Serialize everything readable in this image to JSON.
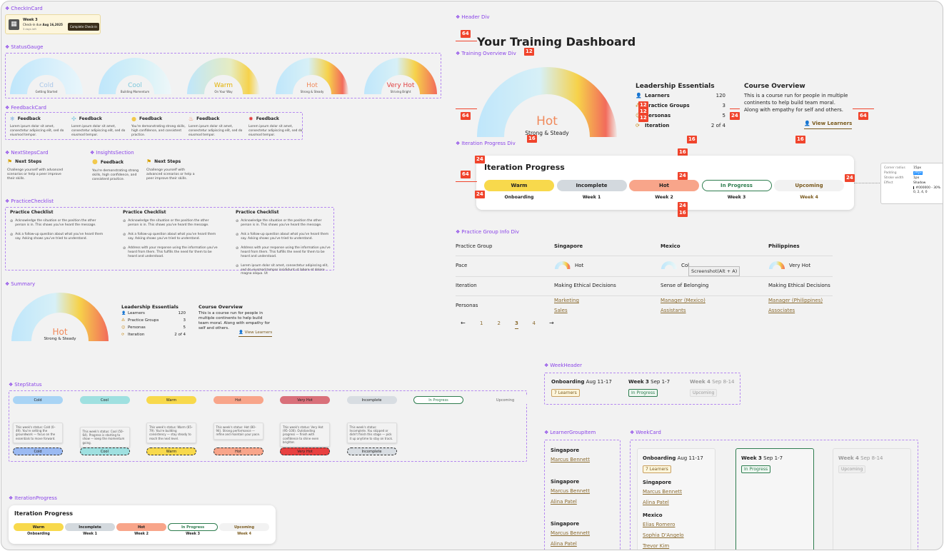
{
  "sections": {
    "checkin": "CheckInCard",
    "gauge": "StatusGauge",
    "feedback": "FeedbackCard",
    "nextsteps": "NextStepsCard",
    "insights": "InsightsSection",
    "checklist": "PracticeChecklist",
    "summary": "Summary",
    "stepstatus": "StepStatus",
    "iterprog": "IterationProgress",
    "header": "Header Div",
    "overview": "Training Overview Div",
    "iterdiv": "Iteration Progress Div",
    "pginfo": "Practice Group Info Div",
    "weekheader": "WeekHeader",
    "learnergroup": "LearnerGroupItem",
    "weekcard": "WeekCard"
  },
  "checkin": {
    "title": "Week 3",
    "due_prefix": "Check-in due",
    "due_date": "Aug 16,2025",
    "left": "3 days left",
    "button": "Complete Check-in"
  },
  "gauges": [
    {
      "label": "Cold",
      "sub": "Getting Started",
      "color": "#a9c6e8"
    },
    {
      "label": "Cool",
      "sub": "Building Momentum",
      "color": "#7fc8dc"
    },
    {
      "label": "Warm",
      "sub": "On Your Way",
      "color": "#e3b100"
    },
    {
      "label": "Hot",
      "sub": "Strong & Steady",
      "color": "#f08a5c"
    },
    {
      "label": "Very Hot",
      "sub": "Striving Bright",
      "color": "#e04040"
    }
  ],
  "feedback": {
    "title": "Feedback",
    "items": [
      {
        "icon": "snowflake-icon",
        "glyph": "❄",
        "color": "#7fb0e0",
        "text": "Lorem ipsum dolor sit amet, consectetur adipiscing elit, sed do eiusmod tempor."
      },
      {
        "icon": "cool-dots-icon",
        "glyph": "✣",
        "color": "#7fc8dc",
        "text": "Lorem ipsum dolor sit amet, consectetur adipiscing elit, sed do eiusmod tempor."
      },
      {
        "icon": "sun-icon",
        "glyph": "●",
        "color": "#f2c94c",
        "text": "You're demonstrating strong skills, high confidence, and consistent practice."
      },
      {
        "icon": "flame-icon",
        "glyph": "♨",
        "color": "#f07040",
        "text": "Lorem ipsum dolor sit amet, consectetur adipiscing elit, sed do eiusmod tempor."
      },
      {
        "icon": "burst-icon",
        "glyph": "✸",
        "color": "#e04040",
        "text": "Lorem ipsum dolor sit amet, consectetur adipiscing elit, sed do eiusmod tempor."
      }
    ]
  },
  "nextsteps": {
    "title": "Next Steps",
    "text": "Challenge yourself with advanced scenarios or help a peer improve their skills."
  },
  "insights": {
    "feedback_title": "Feedback",
    "feedback_text": "You're demonstrating strong skills, high confidence, and consistent practice.",
    "next_title": "Next Steps",
    "next_text": "Challenge yourself with advanced scenarios or help a peer improve their skills."
  },
  "checklist": {
    "title": "Practice Checklist",
    "col1": [
      "Acknowledge the situation or the position the other person is in. This shows you've heard the message.",
      "Ask a follow-up question about what you've heard them say. Asking shows you've tried to understand."
    ],
    "col2": [
      "Acknowledge the situation or the position the other person is in. This shows you've heard the message.",
      "Ask a follow-up question about what you've heard them say. Asking shows you've tried to understand.",
      "Address with your response using the information you've heard from them. This fulfills the need for them to be heard and understood."
    ],
    "col3": [
      "Acknowledge the situation or the position the other person is in. This shows you've heard the message.",
      "Ask a follow-up question about what you've heard them say. Asking shows you've tried to understand.",
      "Address with your response using the information you've heard from them. This fulfills the need for them to be heard and understood.",
      "Lorem ipsum dolor sit amet, consectetur adipiscing elit, sed do eiusmod tempor incididunt ut labore et dolore magna aliqua. Ut"
    ]
  },
  "summary": {
    "gauge_label": "Hot",
    "gauge_sub": "Strong & Steady",
    "le_title": "Leadership Essentials",
    "stats": [
      {
        "icon": "learners-icon",
        "glyph": "👤",
        "label": "Learners",
        "value": "120"
      },
      {
        "icon": "practice-groups-icon",
        "glyph": "⁂",
        "label": "Practice Groups",
        "value": "3"
      },
      {
        "icon": "personas-icon",
        "glyph": "☺",
        "label": "Personas",
        "value": "5"
      },
      {
        "icon": "iteration-icon",
        "glyph": "⟳",
        "label": "Iteration",
        "value": "2 of 4"
      }
    ],
    "co_title": "Course Overview",
    "co_text": "This is a course run for people in multiple continents to help build team moral. Along with empathy for self and others.",
    "view": "View Learners"
  },
  "stepstatus": {
    "pills": [
      {
        "label": "Cold",
        "bg": "#a9d4f5",
        "border": "",
        "color": "#222"
      },
      {
        "label": "Cool",
        "bg": "#9fe0e0",
        "border": "",
        "color": "#222"
      },
      {
        "label": "Warm",
        "bg": "#f8d94c",
        "border": "",
        "color": "#222"
      },
      {
        "label": "Hot",
        "bg": "#f8a58a",
        "border": "",
        "color": "#222"
      },
      {
        "label": "Very Hot",
        "bg": "#d9707a",
        "border": "",
        "color": "#222"
      },
      {
        "label": "Incomplete",
        "bg": "#d8dde2",
        "border": "",
        "color": "#222"
      },
      {
        "label": "In Progress",
        "bg": "#ffffff",
        "border": "#2e7d4f",
        "color": "#2e7d4f"
      },
      {
        "label": "Upcoming",
        "bg": "#f2f2f2",
        "border": "",
        "color": "#666"
      }
    ],
    "tips": [
      {
        "text": "This week's status: Cold (0–49). You're setting the groundwork — focus on the essentials to move forward.",
        "label": "Cold",
        "bg": "#9bbaf2"
      },
      {
        "text": "This week's status: Cool (50–64). Progress is starting to show — keep the momentum going.",
        "label": "Cool",
        "bg": "#9fe0e0"
      },
      {
        "text": "This week's status: Warm (65–79). You're building consistency — stay steady to reach the next level.",
        "label": "Warm",
        "bg": "#f8d94c"
      },
      {
        "text": "This week's status: Hot (80–94). Strong performance — refine and maintain your pace.",
        "label": "Hot",
        "bg": "#f8a58a"
      },
      {
        "text": "This week's status: Very Hot (95–100). Outstanding progress — finish with confidence to shine even brighter.",
        "label": "Very Hot",
        "bg": "#e84040"
      },
      {
        "text": "This week's status: Incomplete. You skipped or didn't finish this stage — pick it up anytime to stay on track.",
        "label": "Incomplete",
        "bg": "#d8dde2"
      }
    ]
  },
  "iteration": {
    "title": "Iteration Progress",
    "steps": [
      {
        "label": "Warm",
        "week": "Onboarding",
        "bg": "#f8d94c",
        "border": "",
        "color": "#222",
        "wcolor": "#222"
      },
      {
        "label": "Incomplete",
        "week": "Week 1",
        "bg": "#d3d9de",
        "border": "",
        "color": "#222",
        "wcolor": "#222"
      },
      {
        "label": "Hot",
        "week": "Week 2",
        "bg": "#f8a58a",
        "border": "",
        "color": "#222",
        "wcolor": "#222"
      },
      {
        "label": "In Progress",
        "week": "Week 3",
        "bg": "#ffffff",
        "border": "#2e7d4f",
        "color": "#2e7d4f",
        "wcolor": "#222"
      },
      {
        "label": "Upcoming",
        "week": "Week 4",
        "bg": "#f2f2f2",
        "border": "",
        "color": "#7a5a1e",
        "wcolor": "#7a5a1e"
      }
    ]
  },
  "header": {
    "title": "Your Training Dashboard"
  },
  "overview": {
    "gauge_label": "Hot",
    "gauge_sub": "Strong & Steady",
    "le_title": "Leadership Essentials",
    "stats": [
      {
        "label": "Learners",
        "value": "120"
      },
      {
        "label": "Practice Groups",
        "value": "3"
      },
      {
        "label": "Personas",
        "value": "5"
      },
      {
        "label": "Iteration",
        "value": "2 of 4"
      }
    ],
    "co_title": "Course Overview",
    "co_text": "This is a course run for people in multiple continents to help build team moral. Along with empathy for self and others.",
    "view": "View Learners"
  },
  "spacing": {
    "s64": "64",
    "s24": "24",
    "s16": "16",
    "s12": "12"
  },
  "inspector": {
    "rows": [
      {
        "k": "Corner radius",
        "v": "15px"
      },
      {
        "k": "Padding",
        "v": "24px"
      },
      {
        "k": "Stroke width",
        "v": "1px"
      },
      {
        "k": "Effect",
        "v": "Shadow"
      }
    ],
    "shadow": "#000000 - 30%",
    "shadow2": "0, 2, 4, 0"
  },
  "pg": {
    "header": "Practice Group",
    "cols": [
      "Singapore",
      "Mexico",
      "Philippines"
    ],
    "rows": {
      "pace": "Pace",
      "iteration": "Iteration",
      "personas": "Personas"
    },
    "pace": [
      "Hot",
      "Col",
      "Very Hot"
    ],
    "iter": [
      "Making Ethical Decisions",
      "Sense of Belonging",
      "Making Ethical Decisions"
    ],
    "personas": [
      [
        "Marketing",
        "Sales"
      ],
      [
        "Manager (Mexico)",
        "Assistants"
      ],
      [
        "Manager (Philippines)",
        "Associates"
      ]
    ],
    "tooltip": "Screenshot(Alt + A)",
    "pagination": {
      "prev": "←",
      "pages": [
        "1",
        "2",
        "3",
        "4"
      ],
      "next": "→"
    }
  },
  "weekheader": [
    {
      "title": "Onboarding",
      "date": "Aug 11-17",
      "badge": "7 Learners"
    },
    {
      "title": "Week 3",
      "date": "Sep 1-7",
      "badge": "In Progress"
    },
    {
      "title": "Week 4",
      "date": "Sep 8-14",
      "badge": "Upcoming"
    }
  ],
  "learnergroup": [
    {
      "group": "Singapore",
      "names": [
        "Marcus Bennett"
      ]
    },
    {
      "group": "Singapore",
      "names": [
        "Marcus Bennett",
        "Alina Patel"
      ]
    },
    {
      "group": "Singapore",
      "names": [
        "Marcus Bennett",
        "Alina Patel"
      ]
    }
  ],
  "weekcard": {
    "c1": {
      "title": "Onboarding",
      "date": "Aug 11-17",
      "badge": "7 Learners",
      "groups": [
        {
          "name": "Singapore",
          "people": [
            "Marcus Bennett",
            "Alina Patel"
          ]
        },
        {
          "name": "Mexico",
          "people": [
            "Elias Romero",
            "Sophia D'Angelo",
            "Trevor Kim"
          ]
        }
      ]
    },
    "c2": {
      "title": "Week 3",
      "date": "Sep 1-7",
      "badge": "In Progress"
    },
    "c3": {
      "title": "Week 4",
      "date": "Sep 8-14",
      "badge": "Upcoming"
    }
  }
}
